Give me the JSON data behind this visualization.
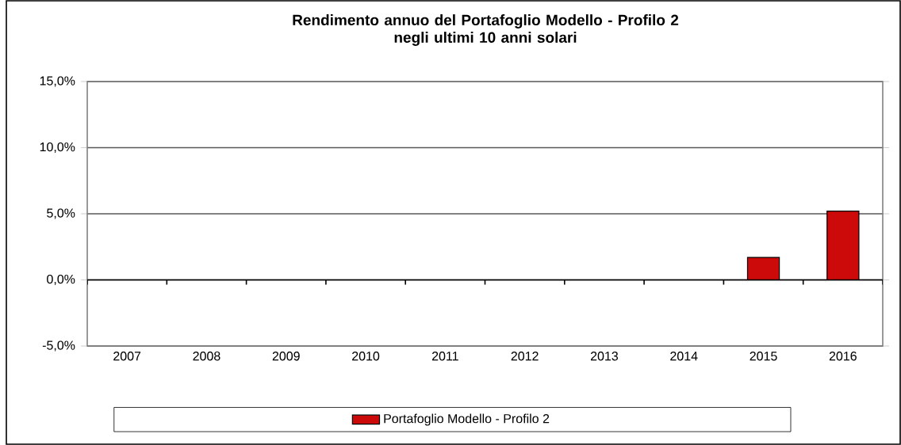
{
  "chart_data": {
    "type": "bar",
    "title": "Rendimento annuo del Portafoglio Modello - Profilo 2\nnegli ultimi 10 anni solari",
    "categories": [
      "2007",
      "2008",
      "2009",
      "2010",
      "2011",
      "2012",
      "2013",
      "2014",
      "2015",
      "2016"
    ],
    "series": [
      {
        "name": "Portafoglio Modello - Profilo 2",
        "color": "#cc0a0a",
        "values": [
          null,
          null,
          null,
          null,
          null,
          null,
          null,
          null,
          1.7,
          5.2
        ]
      }
    ],
    "ylim": [
      -5,
      15
    ],
    "yticks": [
      {
        "value": -5,
        "label": "-5,0%"
      },
      {
        "value": 0,
        "label": "0,0%"
      },
      {
        "value": 5,
        "label": "5,0%"
      },
      {
        "value": 10,
        "label": "10,0%"
      },
      {
        "value": 15,
        "label": "15,0%"
      }
    ],
    "grid": "y",
    "legend": "bottom"
  }
}
